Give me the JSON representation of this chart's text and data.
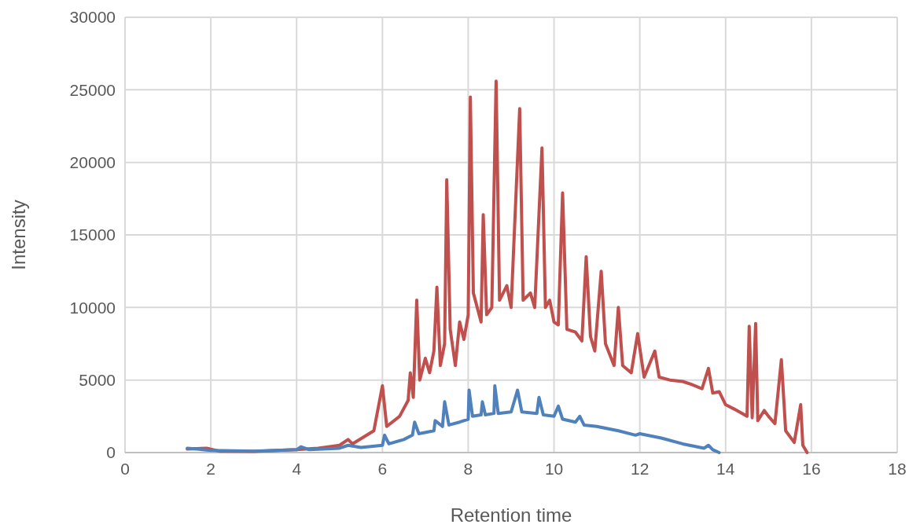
{
  "chart_data": {
    "type": "line",
    "xlabel": "Retention time",
    "ylabel": "Intensity",
    "xlim": [
      0,
      18
    ],
    "xticks": [
      0,
      2,
      4,
      6,
      8,
      10,
      12,
      14,
      16,
      18
    ],
    "ylim": [
      0,
      30000
    ],
    "yticks": [
      0,
      5000,
      10000,
      15000,
      20000,
      25000,
      30000
    ],
    "grid": true,
    "marker": "none",
    "line_style": "solid",
    "series": [
      {
        "color": "#c0504d",
        "x": [
          1.45,
          1.9,
          2.2,
          3,
          4,
          4.5,
          5.0,
          5.2,
          5.3,
          5.8,
          6.0,
          6.1,
          6.4,
          6.6,
          6.65,
          6.72,
          6.8,
          6.87,
          7.0,
          7.1,
          7.2,
          7.27,
          7.35,
          7.45,
          7.5,
          7.58,
          7.7,
          7.8,
          7.9,
          8.0,
          8.05,
          8.12,
          8.3,
          8.35,
          8.43,
          8.55,
          8.65,
          8.73,
          8.9,
          9.0,
          9.2,
          9.28,
          9.45,
          9.55,
          9.72,
          9.8,
          9.9,
          10.0,
          10.1,
          10.2,
          10.3,
          10.5,
          10.65,
          10.75,
          10.85,
          10.95,
          11.1,
          11.2,
          11.4,
          11.5,
          11.6,
          11.8,
          11.95,
          12.1,
          12.35,
          12.45,
          12.7,
          13.0,
          13.2,
          13.45,
          13.6,
          13.7,
          13.85,
          14.0,
          14.2,
          14.5,
          14.55,
          14.62,
          14.7,
          14.75,
          14.9,
          15.0,
          15.15,
          15.3,
          15.4,
          15.6,
          15.75,
          15.8,
          15.9
        ],
        "values": [
          250,
          300,
          100,
          80,
          200,
          300,
          500,
          900,
          600,
          1500,
          4600,
          1800,
          2500,
          3600,
          5500,
          3800,
          10500,
          5000,
          6500,
          5500,
          7000,
          11400,
          6000,
          7500,
          18800,
          8500,
          6000,
          9000,
          7800,
          9500,
          24500,
          11000,
          9000,
          16400,
          9500,
          10000,
          25600,
          10500,
          11500,
          10000,
          23700,
          10500,
          11000,
          10000,
          21000,
          10000,
          10500,
          9000,
          8800,
          17900,
          8500,
          8300,
          7700,
          13500,
          8000,
          7000,
          12500,
          7500,
          6000,
          10000,
          6000,
          5500,
          8200,
          5200,
          7000,
          5200,
          5000,
          4900,
          4700,
          4400,
          5800,
          4100,
          4200,
          3300,
          3000,
          2500,
          8700,
          2400,
          8900,
          2200,
          2900,
          2500,
          2000,
          6400,
          1500,
          700,
          3300,
          500,
          0
        ]
      },
      {
        "color": "#4f81bd",
        "x": [
          1.45,
          2,
          3,
          4.0,
          4.1,
          4.3,
          5.0,
          5.2,
          5.5,
          6.0,
          6.05,
          6.15,
          6.5,
          6.7,
          6.75,
          6.85,
          7.2,
          7.23,
          7.4,
          7.45,
          7.55,
          7.8,
          8.0,
          8.02,
          8.1,
          8.3,
          8.33,
          8.4,
          8.6,
          8.62,
          8.7,
          9.0,
          9.15,
          9.25,
          9.6,
          9.65,
          9.75,
          10.0,
          10.1,
          10.2,
          10.5,
          10.6,
          10.7,
          11,
          11.5,
          11.9,
          12.0,
          12.5,
          13,
          13.5,
          13.6,
          13.7,
          13.85
        ],
        "values": [
          300,
          150,
          100,
          200,
          400,
          200,
          300,
          500,
          350,
          500,
          1200,
          600,
          900,
          1200,
          2100,
          1300,
          1500,
          2200,
          1800,
          3500,
          1900,
          2100,
          2300,
          4300,
          2500,
          2600,
          3500,
          2600,
          2700,
          4600,
          2700,
          2800,
          4300,
          2800,
          2700,
          3800,
          2600,
          2500,
          3200,
          2300,
          2100,
          2500,
          1900,
          1800,
          1500,
          1200,
          1300,
          1000,
          600,
          300,
          500,
          200,
          0
        ]
      }
    ]
  }
}
